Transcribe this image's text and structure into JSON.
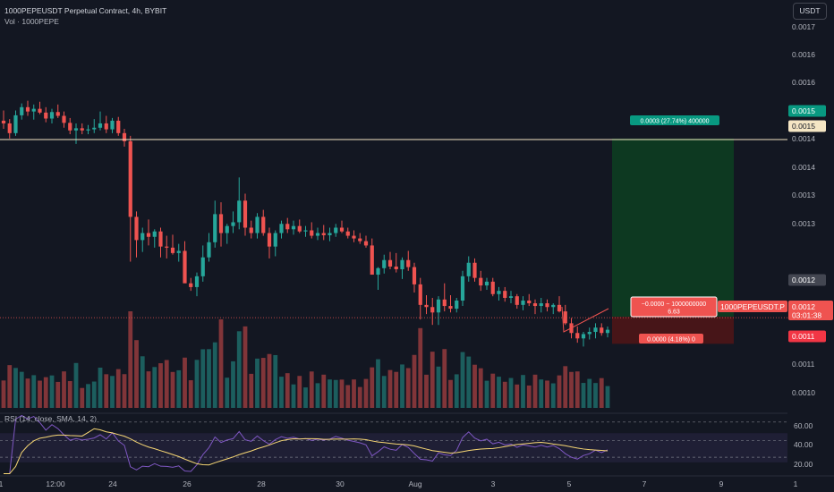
{
  "header": {
    "title": "1000PEPEUSDT Perpetual Contract, 4h, BYBIT",
    "volume_label": "Vol · 1000PEPE",
    "currency_button": "USDT"
  },
  "rsi": {
    "legend": "RSI (14, close, SMA, 14, 2)",
    "levels": [
      "60.00",
      "40.00",
      "20.00"
    ]
  },
  "price_axis": {
    "ticks": [
      "0.0017",
      "0.0016",
      "0.0016",
      "0.0015",
      "0.0014",
      "0.0014",
      "0.0013",
      "0.0013",
      "0.0011",
      "0.0010"
    ],
    "labels": {
      "target": "0.0015",
      "horizontal_line": "0.0015",
      "marker": "0.0012",
      "last": "0.0012",
      "countdown": "03:01:38",
      "stop": "0.0011"
    }
  },
  "time_axis": {
    "ticks": [
      "1",
      "12:00",
      "24",
      "26",
      "28",
      "30",
      "Aug",
      "3",
      "5",
      "7",
      "9",
      "1"
    ]
  },
  "position_tool": {
    "profit_label": "0.0003 (27.74%) 400000",
    "center_line1": "−0.0000 − 1000000000",
    "center_line2": "6.63",
    "stop_label": "0.0000 (4.18%) 0",
    "symbol_tag": "1000PEPEUSDT.P"
  },
  "colors": {
    "background": "#131722",
    "bull": "#26a69a",
    "bear": "#ef5350",
    "profit_zone": "#0d3b22",
    "loss_zone": "#4a1518",
    "rsi_line": "#7e57c2",
    "rsi_ma": "#f7d774",
    "hline": "#f5e6c4"
  },
  "chart_data": {
    "type": "candlestick",
    "title": "1000PEPEUSDT Perpetual Contract, 4h, BYBIT",
    "candles_ohlc": [
      [
        0.001553,
        0.001572,
        0.001538,
        0.001548
      ],
      [
        0.001548,
        0.001556,
        0.00152,
        0.00153
      ],
      [
        0.00153,
        0.001572,
        0.001525,
        0.001563
      ],
      [
        0.001563,
        0.001585,
        0.001555,
        0.001578
      ],
      [
        0.001578,
        0.00159,
        0.001562,
        0.00157
      ],
      [
        0.00157,
        0.001583,
        0.001555,
        0.001575
      ],
      [
        0.001575,
        0.001588,
        0.001565,
        0.001568
      ],
      [
        0.001568,
        0.001578,
        0.00155,
        0.001557
      ],
      [
        0.001557,
        0.001575,
        0.001548,
        0.001569
      ],
      [
        0.001569,
        0.001583,
        0.001558,
        0.001562
      ],
      [
        0.001562,
        0.00157,
        0.00154,
        0.001549
      ],
      [
        0.001549,
        0.001558,
        0.001528,
        0.001535
      ],
      [
        0.001535,
        0.001548,
        0.00151,
        0.001539
      ],
      [
        0.001539,
        0.001548,
        0.001528,
        0.001535
      ],
      [
        0.001535,
        0.001545,
        0.001528,
        0.001537
      ],
      [
        0.001537,
        0.001556,
        0.00153,
        0.00154
      ],
      [
        0.00154,
        0.00157,
        0.001535,
        0.001548
      ],
      [
        0.001548,
        0.001562,
        0.00153,
        0.001537
      ],
      [
        0.001537,
        0.001558,
        0.00153,
        0.001553
      ],
      [
        0.001553,
        0.00156,
        0.001525,
        0.00153
      ],
      [
        0.00153,
        0.001538,
        0.001505,
        0.001515
      ],
      [
        0.001515,
        0.001525,
        0.001292,
        0.001375
      ],
      [
        0.001375,
        0.001385,
        0.0013,
        0.001332
      ],
      [
        0.001332,
        0.001355,
        0.00131,
        0.001345
      ],
      [
        0.001345,
        0.00137,
        0.001322,
        0.001338
      ],
      [
        0.001338,
        0.001352,
        0.001318,
        0.001348
      ],
      [
        0.001348,
        0.001355,
        0.0013,
        0.00132
      ],
      [
        0.00132,
        0.00134,
        0.001298,
        0.001318
      ],
      [
        0.001318,
        0.001342,
        0.001305,
        0.001308
      ],
      [
        0.001308,
        0.001325,
        0.001292,
        0.001312
      ],
      [
        0.001312,
        0.00133,
        0.00128,
        0.001252
      ],
      [
        0.001252,
        0.001262,
        0.001238,
        0.001245
      ],
      [
        0.001245,
        0.001272,
        0.001228,
        0.001265
      ],
      [
        0.001265,
        0.001322,
        0.001255,
        0.0013
      ],
      [
        0.0013,
        0.001345,
        0.001292,
        0.001328
      ],
      [
        0.001328,
        0.001405,
        0.001318,
        0.00138
      ],
      [
        0.00138,
        0.001402,
        0.00132,
        0.001345
      ],
      [
        0.001345,
        0.001362,
        0.001325,
        0.001358
      ],
      [
        0.001358,
        0.001385,
        0.001345,
        0.001365
      ],
      [
        0.001365,
        0.001448,
        0.001352,
        0.001405
      ],
      [
        0.001405,
        0.001418,
        0.00134,
        0.001355
      ],
      [
        0.001355,
        0.001368,
        0.001335,
        0.001345
      ],
      [
        0.001345,
        0.001382,
        0.001335,
        0.001375
      ],
      [
        0.001375,
        0.001388,
        0.00134,
        0.001345
      ],
      [
        0.001345,
        0.001355,
        0.001298,
        0.00132
      ],
      [
        0.00132,
        0.00135,
        0.001302,
        0.001345
      ],
      [
        0.001345,
        0.001368,
        0.001335,
        0.001362
      ],
      [
        0.001362,
        0.001373,
        0.001345,
        0.001352
      ],
      [
        0.001352,
        0.001368,
        0.001342,
        0.001358
      ],
      [
        0.001358,
        0.00137,
        0.001345,
        0.001348
      ],
      [
        0.001348,
        0.001358,
        0.001338,
        0.00135
      ],
      [
        0.00135,
        0.001365,
        0.001335,
        0.00134
      ],
      [
        0.00134,
        0.001355,
        0.001332,
        0.001345
      ],
      [
        0.001345,
        0.00136,
        0.001332,
        0.001341
      ],
      [
        0.001341,
        0.001355,
        0.00133,
        0.001345
      ],
      [
        0.001345,
        0.001362,
        0.001338,
        0.001355
      ],
      [
        0.001355,
        0.001368,
        0.001345,
        0.001348
      ],
      [
        0.001348,
        0.001355,
        0.001335,
        0.00134
      ],
      [
        0.00134,
        0.00135,
        0.001328,
        0.001335
      ],
      [
        0.001335,
        0.001345,
        0.001325,
        0.00133
      ],
      [
        0.00133,
        0.00134,
        0.001318,
        0.001322
      ],
      [
        0.001322,
        0.001335,
        0.00128,
        0.001268
      ],
      [
        0.001268,
        0.001282,
        0.00124,
        0.00128
      ],
      [
        0.00128,
        0.001305,
        0.00127,
        0.001295
      ],
      [
        0.001295,
        0.00131,
        0.001278,
        0.001283
      ],
      [
        0.001283,
        0.001308,
        0.001272,
        0.001278
      ],
      [
        0.001278,
        0.0013,
        0.00126,
        0.001295
      ],
      [
        0.001295,
        0.001312,
        0.001275,
        0.001282
      ],
      [
        0.001282,
        0.00129,
        0.001235,
        0.00125
      ],
      [
        0.00125,
        0.001262,
        0.001185,
        0.001212
      ],
      [
        0.001212,
        0.00123,
        0.001195,
        0.001208
      ],
      [
        0.001208,
        0.001225,
        0.001175,
        0.001198
      ],
      [
        0.001198,
        0.001228,
        0.001175,
        0.001222
      ],
      [
        0.001222,
        0.001252,
        0.0012,
        0.00121
      ],
      [
        0.00121,
        0.00123,
        0.001198,
        0.001205
      ],
      [
        0.001205,
        0.001225,
        0.001198,
        0.00122
      ],
      [
        0.00122,
        0.001275,
        0.00121,
        0.001265
      ],
      [
        0.001265,
        0.001302,
        0.001255,
        0.00129
      ],
      [
        0.00129,
        0.001298,
        0.001255,
        0.001262
      ],
      [
        0.001262,
        0.001275,
        0.001238,
        0.001248
      ],
      [
        0.001248,
        0.001262,
        0.00124,
        0.001255
      ],
      [
        0.001255,
        0.001262,
        0.001228,
        0.001232
      ],
      [
        0.001232,
        0.001245,
        0.00122,
        0.001238
      ],
      [
        0.001238,
        0.001245,
        0.001218,
        0.001225
      ],
      [
        0.001225,
        0.001238,
        0.001215,
        0.001228
      ],
      [
        0.001228,
        0.001232,
        0.001205,
        0.001212
      ],
      [
        0.001212,
        0.001228,
        0.001202,
        0.00122
      ],
      [
        0.00122,
        0.001232,
        0.00121,
        0.001215
      ],
      [
        0.001215,
        0.001222,
        0.001195,
        0.00121
      ],
      [
        0.00121,
        0.001225,
        0.001198,
        0.001215
      ],
      [
        0.001215,
        0.001222,
        0.0012,
        0.001208
      ],
      [
        0.001208,
        0.001215,
        0.001195,
        0.001212
      ],
      [
        0.001212,
        0.001228,
        0.001198,
        0.0012
      ],
      [
        0.0012,
        0.001212,
        0.001175,
        0.001178
      ],
      [
        0.001178,
        0.001188,
        0.00115,
        0.00116
      ],
      [
        0.00116,
        0.001172,
        0.001142,
        0.00115
      ],
      [
        0.00115,
        0.001162,
        0.001135,
        0.001158
      ],
      [
        0.001158,
        0.00117,
        0.001148,
        0.001162
      ],
      [
        0.001162,
        0.001178,
        0.00115,
        0.00117
      ],
      [
        0.00117,
        0.001178,
        0.001155,
        0.00116
      ],
      [
        0.00116,
        0.001172,
        0.001152,
        0.001166
      ]
    ],
    "horizontal_line": 0.001518,
    "take_profit": 0.00152,
    "entry": 0.00119,
    "stop_loss": 0.00114,
    "price_range": [
      0.001018,
      0.00174
    ],
    "rsi_range": [
      13,
      70
    ],
    "rsi_levels": [
      60,
      40,
      20
    ],
    "grid": false
  }
}
